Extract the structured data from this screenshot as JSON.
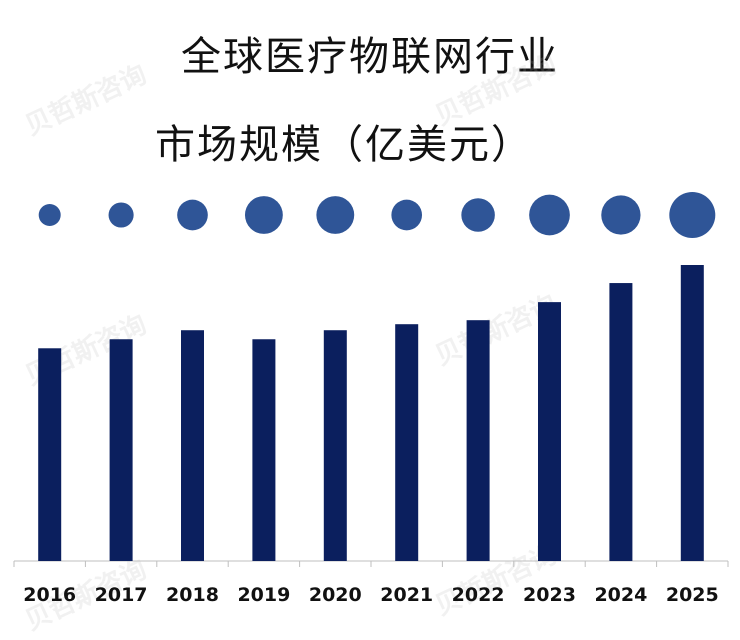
{
  "chart_data": {
    "type": "bar",
    "title": "全球医疗物联网行业",
    "subtitle": "市场规模（亿美元）",
    "categories": [
      "2016",
      "2017",
      "2018",
      "2019",
      "2020",
      "2021",
      "2022",
      "2023",
      "2024",
      "2025"
    ],
    "values": [
      212,
      221,
      230,
      221,
      230,
      236,
      240,
      258,
      277,
      295
    ],
    "bubble_sizes": [
      0.0,
      0.13,
      0.36,
      0.66,
      0.66,
      0.36,
      0.48,
      0.78,
      0.72,
      1.0
    ],
    "ylim": [
      0,
      310
    ],
    "xlabel": "",
    "ylabel": "",
    "grid": false,
    "legend": "none",
    "bar_color": "#0b1f5e",
    "bubble_color": "#2f5597"
  },
  "watermark_text": "贝哲斯咨询"
}
